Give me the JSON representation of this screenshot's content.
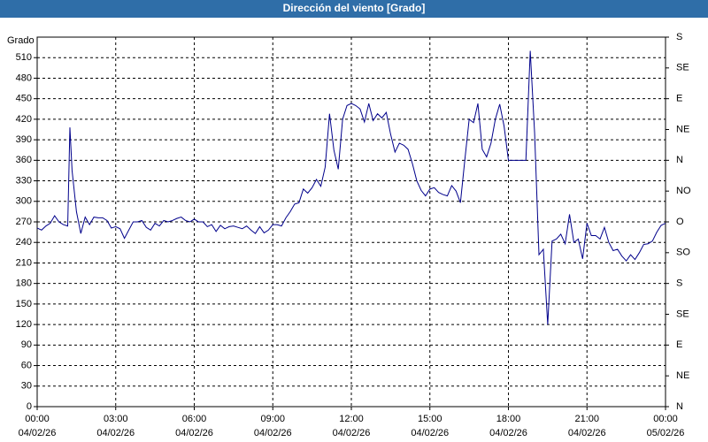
{
  "chart_data": {
    "type": "line",
    "title": "Dirección del viento [Grado]",
    "y_label": "Grado",
    "xlim": [
      0,
      1440
    ],
    "xticks": [
      {
        "value": 0,
        "label": "00:00",
        "date": "04/02/26"
      },
      {
        "value": 180,
        "label": "03:00",
        "date": "04/02/26"
      },
      {
        "value": 360,
        "label": "06:00",
        "date": "04/02/26"
      },
      {
        "value": 540,
        "label": "09:00",
        "date": "04/02/26"
      },
      {
        "value": 720,
        "label": "12:00",
        "date": "04/02/26"
      },
      {
        "value": 900,
        "label": "15:00",
        "date": "04/02/26"
      },
      {
        "value": 1080,
        "label": "18:00",
        "date": "04/02/26"
      },
      {
        "value": 1260,
        "label": "21:00",
        "date": "04/02/26"
      },
      {
        "value": 1440,
        "label": "00:00",
        "date": "05/02/26"
      }
    ],
    "ylim": [
      0,
      540
    ],
    "yticks": [
      0,
      30,
      60,
      90,
      120,
      150,
      180,
      210,
      240,
      270,
      300,
      330,
      360,
      390,
      420,
      450,
      480,
      510
    ],
    "y2lim": [
      0,
      540
    ],
    "y2ticks": [
      {
        "value": 0,
        "label": "N"
      },
      {
        "value": 45,
        "label": "NE"
      },
      {
        "value": 90,
        "label": "E"
      },
      {
        "value": 135,
        "label": "SE"
      },
      {
        "value": 180,
        "label": "S"
      },
      {
        "value": 225,
        "label": "SO"
      },
      {
        "value": 270,
        "label": "O"
      },
      {
        "value": 315,
        "label": "NO"
      },
      {
        "value": 360,
        "label": "N"
      },
      {
        "value": 405,
        "label": "NE"
      },
      {
        "value": 450,
        "label": "E"
      },
      {
        "value": 495,
        "label": "SE"
      },
      {
        "value": 540,
        "label": "S"
      }
    ],
    "grid": true,
    "x": [
      0,
      10,
      20,
      30,
      40,
      50,
      60,
      70,
      75,
      80,
      90,
      100,
      110,
      120,
      130,
      140,
      150,
      160,
      170,
      180,
      190,
      200,
      210,
      220,
      230,
      240,
      250,
      260,
      270,
      280,
      290,
      300,
      310,
      320,
      330,
      340,
      350,
      360,
      370,
      380,
      390,
      400,
      410,
      420,
      430,
      440,
      450,
      460,
      470,
      480,
      490,
      500,
      510,
      520,
      530,
      540,
      550,
      560,
      570,
      580,
      590,
      600,
      610,
      620,
      630,
      640,
      650,
      660,
      670,
      680,
      690,
      700,
      710,
      720,
      730,
      740,
      750,
      760,
      770,
      780,
      790,
      800,
      810,
      820,
      830,
      840,
      850,
      860,
      870,
      880,
      890,
      900,
      910,
      920,
      930,
      940,
      950,
      960,
      970,
      980,
      990,
      1000,
      1010,
      1020,
      1030,
      1040,
      1050,
      1060,
      1070,
      1080,
      1090,
      1100,
      1110,
      1120,
      1130,
      1140,
      1150,
      1160,
      1170,
      1180,
      1190,
      1200,
      1210,
      1220,
      1230,
      1240,
      1250,
      1260,
      1270,
      1280,
      1290,
      1300,
      1310,
      1320,
      1330,
      1340,
      1350,
      1360,
      1370,
      1380,
      1390,
      1400,
      1410,
      1420,
      1430,
      1440
    ],
    "series": [
      {
        "name": "Dirección del viento",
        "color": "#00008b",
        "values": [
          261,
          258,
          264,
          268,
          279,
          270,
          266,
          264,
          408,
          345,
          285,
          253,
          277,
          266,
          277,
          276,
          276,
          272,
          261,
          263,
          260,
          246,
          258,
          270,
          270,
          272,
          262,
          258,
          268,
          264,
          272,
          270,
          272,
          275,
          277,
          272,
          270,
          274,
          270,
          270,
          263,
          266,
          256,
          265,
          260,
          263,
          264,
          262,
          260,
          264,
          258,
          253,
          263,
          254,
          258,
          266,
          266,
          264,
          276,
          285,
          296,
          298,
          318,
          312,
          320,
          332,
          322,
          350,
          428,
          375,
          347,
          420,
          440,
          443,
          440,
          435,
          416,
          443,
          418,
          428,
          422,
          430,
          398,
          372,
          385,
          382,
          376,
          355,
          330,
          316,
          308,
          318,
          320,
          313,
          310,
          308,
          323,
          315,
          298,
          360,
          420,
          415,
          443,
          376,
          365,
          385,
          420,
          442,
          410,
          360,
          360,
          360,
          360,
          360,
          520,
          400,
          222,
          230,
          120,
          242,
          245,
          252,
          238,
          281,
          240,
          245,
          216,
          268,
          250,
          250,
          245,
          262,
          240,
          228,
          230,
          220,
          213,
          222,
          215,
          225,
          237,
          238,
          242,
          255,
          265,
          268
        ]
      }
    ]
  }
}
